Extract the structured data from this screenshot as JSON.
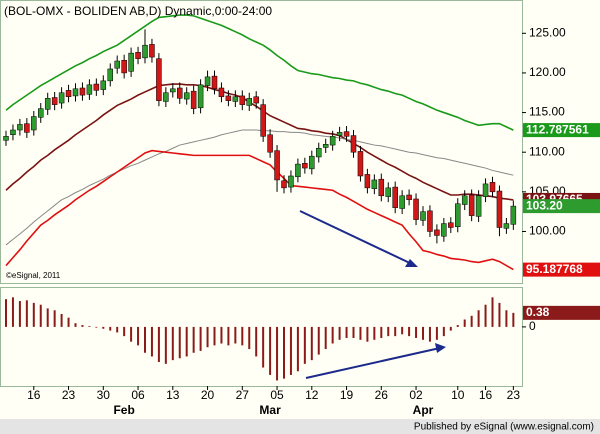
{
  "chart_data": [
    {
      "type": "candlestick",
      "title": "(BOL-OMX - BOLIDEN AB,D) Dynamic,0:00-24:00",
      "watermark": "©eSignal, 2011",
      "up_color": "#2e9b2e",
      "down_color": "#d01818",
      "ylim": [
        93.5,
        129.2
      ],
      "yticks": [
        {
          "value": 100,
          "label": "100.00"
        },
        {
          "value": 105,
          "label": "105.00"
        },
        {
          "value": 110,
          "label": "110.00"
        },
        {
          "value": 115,
          "label": "115.00"
        },
        {
          "value": 120,
          "label": "120.00"
        },
        {
          "value": 125,
          "label": "125.00"
        }
      ],
      "open": [
        111.5,
        112.2,
        112.8,
        113.6,
        112.8,
        114.4,
        115.4,
        116.9,
        116.2,
        117.8,
        117.1,
        118.1,
        117.3,
        118.6,
        117.9,
        119.0,
        120.6,
        121.6,
        120.2,
        122.6,
        121.9,
        123.6,
        121.8,
        116.4,
        117.6,
        118.1,
        116.7,
        117.7,
        115.6,
        118.4,
        119.6,
        118.1,
        117.1,
        116.4,
        117.1,
        115.9,
        117.0,
        116.0,
        112.2,
        110.2,
        106.4,
        105.6,
        106.9,
        108.6,
        107.9,
        109.4,
        110.6,
        110.9,
        112.1,
        112.6,
        112.1,
        110.1,
        107.2,
        105.4,
        106.6,
        104.4,
        105.6,
        102.9,
        104.6,
        104.1,
        101.4,
        102.6,
        100.2,
        99.4,
        101.1,
        100.6,
        103.4,
        104.6,
        101.9,
        104.4,
        106.2,
        105.1,
        100.4,
        100.9
      ],
      "high": [
        112.7,
        113.5,
        114.2,
        114.3,
        115.2,
        116.2,
        117.5,
        117.6,
        118.2,
        118.5,
        118.7,
        118.8,
        119.2,
        119.3,
        119.7,
        121.2,
        122.2,
        122.3,
        123.2,
        123.3,
        125.5,
        124.3,
        122.5,
        118.2,
        118.7,
        118.8,
        118.2,
        118.4,
        119.2,
        120.3,
        120.3,
        118.8,
        117.8,
        117.8,
        117.8,
        117.5,
        117.7,
        116.7,
        112.9,
        110.9,
        107.1,
        107.7,
        109.2,
        109.3,
        110.2,
        111.2,
        111.7,
        112.7,
        113.2,
        113.3,
        112.8,
        110.8,
        107.9,
        107.2,
        107.3,
        106.2,
        106.3,
        105.2,
        105.3,
        104.8,
        103.2,
        103.3,
        100.9,
        101.7,
        101.8,
        104.2,
        105.2,
        105.3,
        105.2,
        106.7,
        106.9,
        105.8,
        101.7,
        103.9
      ],
      "low": [
        110.8,
        111.5,
        112.1,
        111.8,
        112.1,
        113.7,
        114.7,
        115.3,
        115.5,
        116.3,
        116.4,
        116.5,
        116.6,
        117.1,
        117.2,
        118.3,
        119.9,
        119.3,
        119.5,
        121.1,
        121.2,
        121.3,
        115.8,
        115.7,
        116.9,
        116.1,
        116.0,
        114.8,
        114.9,
        117.7,
        117.3,
        116.3,
        115.8,
        115.7,
        115.3,
        115.2,
        115.5,
        111.3,
        109.3,
        105.0,
        104.8,
        104.9,
        106.2,
        107.3,
        107.2,
        108.7,
        109.9,
        110.2,
        111.4,
        111.3,
        109.3,
        106.3,
        104.8,
        104.7,
        103.8,
        103.7,
        102.3,
        102.2,
        103.3,
        100.8,
        100.7,
        99.3,
        98.5,
        98.7,
        99.8,
        99.9,
        102.7,
        101.3,
        101.2,
        103.7,
        104.3,
        99.4,
        99.7,
        100.2
      ],
      "close": [
        112.0,
        112.8,
        113.5,
        112.5,
        114.5,
        115.5,
        116.8,
        116.0,
        117.5,
        117.0,
        118.0,
        117.2,
        118.5,
        117.8,
        119.0,
        120.5,
        121.5,
        120.0,
        122.5,
        121.8,
        123.5,
        122.0,
        116.5,
        117.5,
        118.0,
        116.8,
        117.5,
        115.5,
        118.5,
        119.5,
        118.0,
        117.0,
        116.5,
        117.0,
        116.0,
        116.8,
        116.2,
        112.0,
        110.0,
        106.5,
        105.5,
        107.0,
        108.5,
        108.0,
        109.5,
        110.5,
        111.0,
        112.0,
        112.5,
        112.0,
        110.0,
        107.0,
        105.5,
        106.5,
        104.5,
        105.5,
        103.0,
        104.5,
        104.0,
        101.5,
        102.5,
        100.0,
        99.5,
        101.0,
        100.5,
        103.5,
        104.5,
        102.0,
        104.5,
        106.0,
        105.0,
        100.5,
        101.0,
        103.2
      ],
      "close_last_label": "103.20",
      "series": [
        {
          "color": "#7a1414",
          "values": [
            105.2,
            106.0,
            106.7,
            107.5,
            108.2,
            109.0,
            109.6,
            110.3,
            110.9,
            111.5,
            112.2,
            112.8,
            113.4,
            114.0,
            114.7,
            115.3,
            115.9,
            116.3,
            116.7,
            117.2,
            117.6,
            118.0,
            118.4,
            118.5,
            118.6,
            118.6,
            118.5,
            118.5,
            118.4,
            118.2,
            117.9,
            117.7,
            117.4,
            117.2,
            116.9,
            116.3,
            115.8,
            115.2,
            114.6,
            114.2,
            113.8,
            113.4,
            113.0,
            112.9,
            112.7,
            112.6,
            112.4,
            112.3,
            112.1,
            111.6,
            111.1,
            110.6,
            110.0,
            109.5,
            109.0,
            108.5,
            108.1,
            107.6,
            107.1,
            106.7,
            106.2,
            105.8,
            105.4,
            105.0,
            104.6,
            104.6,
            104.7,
            104.7,
            104.6,
            104.5,
            104.4,
            104.2,
            104.1,
            103.97665
          ]
        },
        {
          "color": "#1a9a1a",
          "values": [
            115.3,
            116.0,
            116.6,
            117.2,
            117.8,
            118.4,
            118.9,
            119.4,
            119.9,
            120.4,
            120.9,
            121.3,
            121.8,
            122.2,
            122.7,
            123.1,
            123.5,
            124.1,
            124.7,
            125.3,
            125.9,
            126.5,
            127.0,
            127.1,
            127.2,
            127.3,
            127.3,
            127.2,
            126.9,
            126.6,
            126.3,
            126.0,
            125.6,
            125.2,
            124.8,
            124.3,
            123.9,
            123.5,
            122.9,
            122.2,
            121.6,
            120.9,
            120.3,
            120.1,
            119.9,
            119.8,
            119.6,
            119.4,
            119.3,
            119.1,
            119.0,
            118.7,
            118.5,
            118.2,
            117.9,
            117.7,
            117.4,
            117.2,
            116.8,
            116.4,
            116.1,
            115.7,
            115.3,
            115.0,
            114.7,
            114.4,
            114.0,
            113.7,
            113.4,
            113.5,
            113.6,
            113.6,
            113.2,
            112.787561
          ]
        },
        {
          "color": "#888888",
          "values": [
            98.3,
            99.0,
            99.7,
            100.4,
            101.2,
            101.9,
            102.6,
            103.3,
            104.0,
            104.4,
            104.9,
            105.3,
            105.8,
            106.2,
            106.6,
            107.1,
            107.5,
            107.9,
            108.3,
            108.6,
            109.0,
            109.4,
            109.8,
            110.1,
            110.5,
            110.9,
            111.1,
            111.3,
            111.5,
            111.7,
            111.9,
            112.2,
            112.4,
            112.6,
            112.8,
            112.8,
            112.8,
            112.7,
            112.7,
            112.6,
            112.6,
            112.5,
            112.5,
            112.4,
            112.2,
            112.1,
            112.0,
            111.9,
            111.8,
            111.6,
            111.5,
            111.3,
            111.1,
            110.9,
            110.8,
            110.6,
            110.4,
            110.2,
            110.0,
            109.9,
            109.7,
            109.5,
            109.3,
            109.2,
            109.0,
            108.8,
            108.6,
            108.4,
            108.2,
            108.0,
            107.7,
            107.5,
            107.3,
            107.1
          ]
        },
        {
          "color": "#e01010",
          "values": [
            95.7,
            96.7,
            97.7,
            98.8,
            99.8,
            100.8,
            101.4,
            102.1,
            102.7,
            103.3,
            104.0,
            104.6,
            105.2,
            105.7,
            106.3,
            106.9,
            107.5,
            108.1,
            108.7,
            109.3,
            109.9,
            110.2,
            110.1,
            110.0,
            109.9,
            109.8,
            109.7,
            109.6,
            109.6,
            109.6,
            109.6,
            109.6,
            109.6,
            109.6,
            109.6,
            109.6,
            109.2,
            108.8,
            108.4,
            107.5,
            106.7,
            105.8,
            105.7,
            105.6,
            105.5,
            105.4,
            105.3,
            105.2,
            104.7,
            104.3,
            103.8,
            103.3,
            102.8,
            102.4,
            102.0,
            101.6,
            101.2,
            100.8,
            99.7,
            98.7,
            97.6,
            97.4,
            97.1,
            96.9,
            96.6,
            96.5,
            96.4,
            96.2,
            96.1,
            96.3,
            96.5,
            96.2,
            95.7,
            95.187768
          ]
        }
      ]
    },
    {
      "type": "bar",
      "color": "#8b1a1a",
      "ylim": [
        -1.6,
        1.08
      ],
      "yticks": [
        0
      ],
      "categories": [
        null,
        null,
        null,
        null,
        "16",
        null,
        null,
        null,
        null,
        "23",
        null,
        null,
        null,
        null,
        "30",
        null,
        null,
        null,
        null,
        "06",
        null,
        null,
        null,
        null,
        "13",
        null,
        null,
        null,
        null,
        "20",
        null,
        null,
        null,
        null,
        "27",
        null,
        null,
        null,
        null,
        "05",
        null,
        null,
        null,
        null,
        "12",
        null,
        null,
        null,
        null,
        "19",
        null,
        null,
        null,
        null,
        "26",
        null,
        null,
        null,
        null,
        "02",
        null,
        null,
        null,
        null,
        null,
        "10",
        null,
        null,
        null,
        "16",
        null,
        null,
        null,
        "23"
      ],
      "months": [
        null,
        null,
        null,
        null,
        null,
        null,
        null,
        null,
        null,
        null,
        null,
        null,
        null,
        null,
        null,
        null,
        null,
        "Feb",
        null,
        null,
        null,
        null,
        null,
        null,
        null,
        null,
        null,
        null,
        null,
        null,
        null,
        null,
        null,
        null,
        null,
        null,
        null,
        null,
        "Mar",
        null,
        null,
        null,
        null,
        null,
        null,
        null,
        null,
        null,
        null,
        null,
        null,
        null,
        null,
        null,
        null,
        null,
        null,
        null,
        null,
        null,
        "Apr",
        null,
        null,
        null,
        null,
        null,
        null,
        null,
        null,
        null,
        null,
        null,
        null,
        null
      ],
      "values": [
        0.75,
        0.8,
        0.7,
        0.72,
        0.65,
        0.6,
        0.5,
        0.45,
        0.35,
        0.25,
        0.1,
        0.05,
        0.02,
        -0.02,
        -0.05,
        -0.1,
        -0.15,
        -0.25,
        -0.4,
        -0.5,
        -0.7,
        -0.8,
        -0.95,
        -1.0,
        -0.9,
        -0.85,
        -0.8,
        -0.7,
        -0.65,
        -0.55,
        -0.5,
        -0.45,
        -0.5,
        -0.45,
        -0.5,
        -0.6,
        -0.8,
        -1.1,
        -1.3,
        -1.45,
        -1.4,
        -1.3,
        -1.2,
        -1.0,
        -0.9,
        -0.75,
        -0.6,
        -0.45,
        -0.35,
        -0.3,
        -0.3,
        -0.35,
        -0.4,
        -0.35,
        -0.3,
        -0.25,
        -0.25,
        -0.2,
        -0.25,
        -0.3,
        -0.35,
        -0.4,
        -0.35,
        -0.25,
        -0.1,
        0.05,
        0.2,
        0.3,
        0.45,
        0.6,
        0.8,
        0.65,
        0.45,
        0.38
      ]
    }
  ],
  "footer": "Published by eSignal (www.esignal.com)"
}
